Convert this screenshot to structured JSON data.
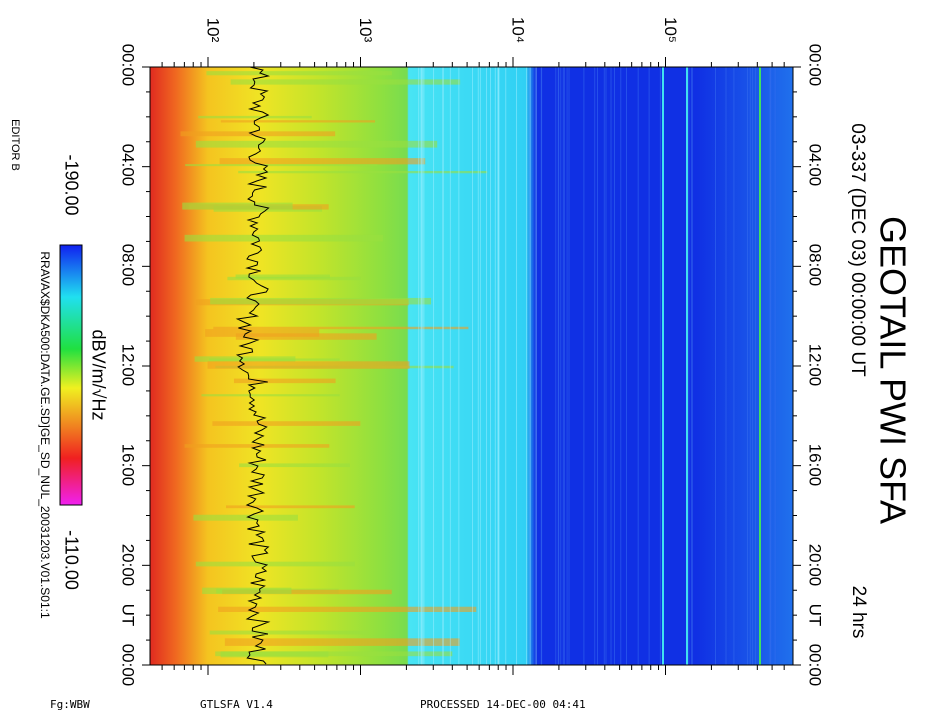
{
  "header": {
    "title": "GEOTAIL PWI SFA",
    "subtitle": "03-337 (DEC 03) 00:00:00 UT",
    "span": "24 hrs"
  },
  "time_labels_left": [
    "00:00",
    "04:00",
    "08:00",
    "12:00",
    "16:00",
    "20:00",
    "UT",
    "00:00"
  ],
  "time_labels_right": [
    "00:00",
    "04:00",
    "08:00",
    "12:00",
    "16:00",
    "20:00",
    "UT",
    "00:00"
  ],
  "frequency_labels": [
    "10²",
    "10³",
    "10⁴",
    "10⁵"
  ],
  "colorbar": {
    "min": "-190.00",
    "unit": "dBV/m/√Hz",
    "max": "-110.00"
  },
  "editor": "EDITOR B",
  "file": "RRAVAX$DKA500:DATA.GE.SD]GE_SD_NUL_20031203.V01.S01:1",
  "footer": {
    "mode": "Fg:WBW",
    "program": "GTLSFA  V1.4",
    "processed": "PROCESSED 14-DEC-00  04:41"
  }
}
